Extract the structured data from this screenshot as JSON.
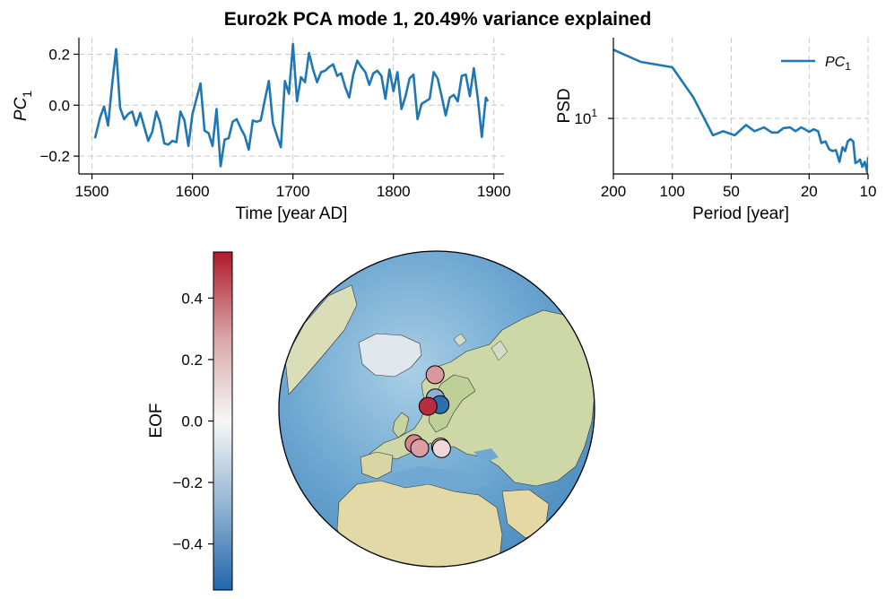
{
  "figure": {
    "title": "Euro2k PCA mode 1, 20.49% variance explained"
  },
  "chart_data": [
    {
      "type": "line",
      "name": "pc-timeseries",
      "xlabel": "Time [year AD]",
      "ylabel_base": "PC",
      "ylabel_sub": "1",
      "xlim": [
        1487,
        1910
      ],
      "ylim": [
        -0.27,
        0.265
      ],
      "xticks": [
        1500,
        1600,
        1700,
        1800,
        1900
      ],
      "yticks": [
        0.2,
        0.0,
        -0.2
      ],
      "ytick_labels": [
        "0.2",
        "0.0",
        "−0.2"
      ],
      "grid": true,
      "color": "#1f77b4",
      "x": [
        1503,
        1508,
        1512,
        1516,
        1520,
        1524,
        1528,
        1532,
        1536,
        1540,
        1544,
        1548,
        1552,
        1556,
        1560,
        1564,
        1568,
        1572,
        1576,
        1580,
        1584,
        1588,
        1592,
        1596,
        1600,
        1604,
        1608,
        1612,
        1616,
        1620,
        1624,
        1628,
        1632,
        1636,
        1640,
        1644,
        1648,
        1652,
        1656,
        1660,
        1664,
        1668,
        1672,
        1676,
        1680,
        1684,
        1688,
        1692,
        1696,
        1700,
        1704,
        1708,
        1712,
        1716,
        1720,
        1724,
        1728,
        1732,
        1736,
        1740,
        1744,
        1748,
        1752,
        1756,
        1760,
        1764,
        1768,
        1772,
        1776,
        1780,
        1784,
        1788,
        1792,
        1796,
        1800,
        1804,
        1808,
        1812,
        1816,
        1820,
        1824,
        1828,
        1832,
        1836,
        1840,
        1844,
        1848,
        1852,
        1856,
        1860,
        1864,
        1868,
        1872,
        1876,
        1880,
        1884,
        1888,
        1892
      ],
      "y": [
        -0.13,
        -0.05,
        -0.005,
        -0.08,
        0.08,
        0.22,
        -0.01,
        -0.055,
        -0.035,
        -0.025,
        -0.08,
        -0.03,
        -0.085,
        -0.14,
        -0.105,
        -0.025,
        -0.07,
        -0.15,
        -0.155,
        -0.14,
        -0.145,
        -0.025,
        -0.06,
        -0.16,
        -0.035,
        0.025,
        0.085,
        -0.1,
        -0.11,
        -0.16,
        -0.015,
        -0.24,
        -0.135,
        -0.13,
        -0.065,
        -0.055,
        -0.09,
        -0.12,
        -0.175,
        -0.06,
        -0.065,
        -0.06,
        0.02,
        0.095,
        -0.07,
        -0.12,
        -0.165,
        0.095,
        0.045,
        0.24,
        0.015,
        0.11,
        0.09,
        0.205,
        0.14,
        0.09,
        0.13,
        0.135,
        0.15,
        0.16,
        0.115,
        0.125,
        0.07,
        0.03,
        0.12,
        0.175,
        0.15,
        0.13,
        0.08,
        0.125,
        0.135,
        0.115,
        0.025,
        0.14,
        0.055,
        0.13,
        -0.015,
        0.035,
        0.105,
        0.12,
        -0.055,
        0.005,
        0.015,
        0.025,
        0.13,
        0.105,
        0.035,
        -0.04,
        0.03,
        0.04,
        0.015,
        0.115,
        0.12,
        0.035,
        0.145,
        0.025,
        -0.125,
        0.03
      ],
      "end_point": {
        "x": 1894,
        "y": 0.015
      }
    },
    {
      "type": "line",
      "name": "psd",
      "xscale": "log-reversed",
      "yscale": "log",
      "xlabel": "Period [year]",
      "ylabel": "PSD",
      "xlim": [
        200,
        10
      ],
      "xticks": [
        200,
        100,
        50,
        20,
        10
      ],
      "ytick_label_base": "10",
      "ytick_label_exp": "1",
      "legend": {
        "label_base": "PC",
        "label_sub": "1",
        "placement": "top-right"
      },
      "grid": true,
      "color": "#1f77b4",
      "period": [
        200,
        145,
        100,
        78,
        62,
        55,
        48,
        42,
        38,
        34,
        31,
        29,
        27,
        25,
        23.5,
        22,
        21,
        20,
        19,
        18,
        17.3,
        16.5,
        15.8,
        15.2,
        14.6,
        14,
        13.5,
        13.1,
        12.7,
        12.3,
        11.9,
        11.6,
        11.3,
        11,
        10.7,
        10.4,
        10.1,
        10
      ],
      "psd": [
        38,
        30,
        27,
        15,
        7.2,
        7.8,
        7.2,
        8.8,
        7.8,
        8.4,
        7.6,
        7.6,
        8.3,
        8.4,
        7.8,
        8.4,
        8.1,
        7.7,
        8.1,
        7.8,
        6.2,
        6.4,
        5.5,
        5.3,
        5.4,
        4.3,
        5.7,
        5.3,
        6.4,
        6.7,
        6.4,
        4.2,
        4.3,
        4.5,
        3.9,
        4.3,
        3.5,
        4.7
      ],
      "psd_at_ytick": 10
    },
    {
      "type": "map",
      "name": "eof-map",
      "projection": "orthographic",
      "center": {
        "lon": 20,
        "lat": 60
      },
      "colorbar": {
        "label": "EOF",
        "vmin": -0.55,
        "vmax": 0.55,
        "ticks": [
          0.4,
          0.2,
          0.0,
          -0.2,
          -0.4
        ],
        "tick_labels": [
          "0.4",
          "0.2",
          "0.0",
          "−0.2",
          "−0.4"
        ],
        "colormap": "blue-white-red",
        "low_color": "#2166ac",
        "mid_color": "#f7f7f7",
        "high_color": "#b2182b"
      },
      "sites": [
        {
          "lon": 18.0,
          "lat": 72.5,
          "eof": 0.24
        },
        {
          "lon": 18.8,
          "lat": 64.0,
          "eof": -0.27
        },
        {
          "lon": 22.5,
          "lat": 61.5,
          "eof": -0.52
        },
        {
          "lon": 13.5,
          "lat": 60.8,
          "eof": 0.5
        },
        {
          "lon": 8.0,
          "lat": 46.5,
          "eof": 0.28
        },
        {
          "lon": 11.2,
          "lat": 45.2,
          "eof": 0.22
        },
        {
          "lon": 22.0,
          "lat": 46.0,
          "eof": 0.12
        },
        {
          "lon": 22.5,
          "lat": 45.4,
          "eof": 0.08
        }
      ]
    }
  ]
}
